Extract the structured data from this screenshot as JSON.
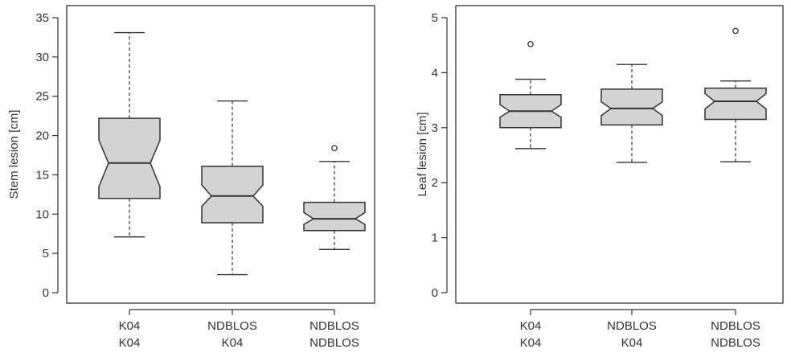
{
  "chart_data": [
    {
      "type": "boxplot",
      "notched": true,
      "ylabel": "Stem lesion [cm]",
      "ylim": [
        0,
        35
      ],
      "yticks": [
        0,
        5,
        10,
        15,
        20,
        25,
        30,
        35
      ],
      "categories": [
        [
          "K04",
          "K04"
        ],
        [
          "NDBLOS",
          "K04"
        ],
        [
          "NDBLOS",
          "NDBLOS"
        ]
      ],
      "boxes": [
        {
          "whisker_low": 7.1,
          "q1": 12.0,
          "notch_low": 13.5,
          "median": 16.5,
          "notch_high": 19.4,
          "q3": 22.2,
          "whisker_high": 33.1,
          "outliers": []
        },
        {
          "whisker_low": 2.3,
          "q1": 8.9,
          "notch_low": 11.0,
          "median": 12.3,
          "notch_high": 13.7,
          "q3": 16.1,
          "whisker_high": 24.4,
          "outliers": []
        },
        {
          "whisker_low": 5.5,
          "q1": 7.9,
          "notch_low": 8.7,
          "median": 9.4,
          "notch_high": 10.2,
          "q3": 11.5,
          "whisker_high": 16.7,
          "outliers": [
            18.4
          ]
        }
      ],
      "box_fill": "#d3d3d3",
      "grid": false
    },
    {
      "type": "boxplot",
      "notched": true,
      "ylabel": "Leaf lesion [cm]",
      "ylim": [
        0,
        5
      ],
      "yticks": [
        0,
        1,
        2,
        3,
        4,
        5
      ],
      "categories": [
        [
          "K04",
          "K04"
        ],
        [
          "NDBLOS",
          "K04"
        ],
        [
          "NDBLOS",
          "NDBLOS"
        ]
      ],
      "boxes": [
        {
          "whisker_low": 2.62,
          "q1": 3.0,
          "notch_low": 3.19,
          "median": 3.3,
          "notch_high": 3.42,
          "q3": 3.6,
          "whisker_high": 3.88,
          "outliers": [
            4.52
          ]
        },
        {
          "whisker_low": 2.37,
          "q1": 3.05,
          "notch_low": 3.22,
          "median": 3.35,
          "notch_high": 3.47,
          "q3": 3.7,
          "whisker_high": 4.15,
          "outliers": []
        },
        {
          "whisker_low": 2.38,
          "q1": 3.15,
          "notch_low": 3.34,
          "median": 3.48,
          "notch_high": 3.62,
          "q3": 3.72,
          "whisker_high": 3.85,
          "outliers": [
            4.76
          ]
        }
      ],
      "box_fill": "#d3d3d3",
      "grid": false
    }
  ]
}
